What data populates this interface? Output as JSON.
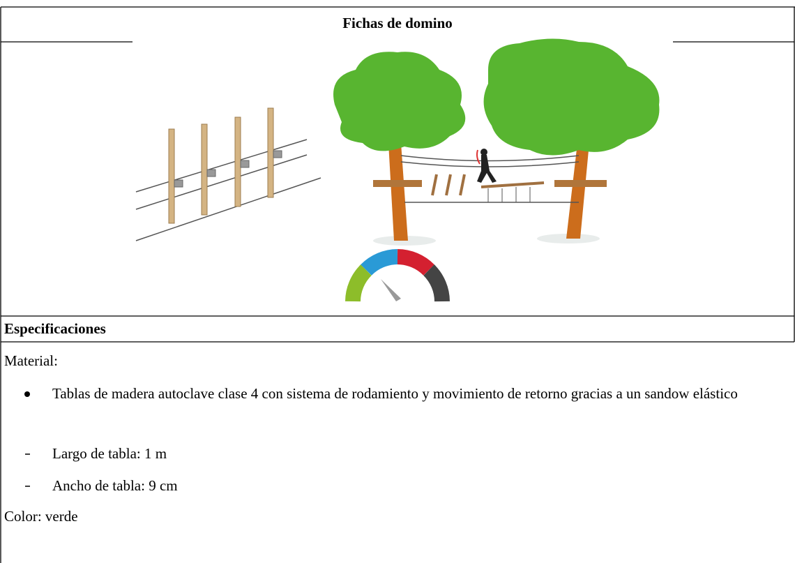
{
  "header": {
    "title": "Fichas de domino"
  },
  "specs": {
    "heading": "Especificaciones",
    "material_label": "Material:",
    "bullets": [
      "Tablas de madera autoclave clase 4 con sistema de rodamiento y movimiento de retorno gracias a un sandow elástico"
    ],
    "details": [
      "Largo de tabla: 1 m",
      "Ancho de tabla: 9 cm"
    ],
    "color": "Color: verde"
  }
}
